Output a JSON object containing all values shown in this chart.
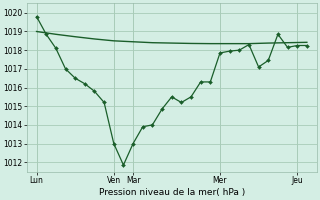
{
  "xlabel": "Pression niveau de la mer( hPa )",
  "bg_color": "#d4eee4",
  "grid_color": "#a8ccb8",
  "line_color": "#1a5e2a",
  "ylim": [
    1011.5,
    1020.5
  ],
  "yticks": [
    1012,
    1013,
    1014,
    1015,
    1016,
    1017,
    1018,
    1019,
    1020
  ],
  "xlim": [
    0,
    30
  ],
  "x_tick_positions": [
    1,
    9,
    11,
    20,
    28
  ],
  "x_tick_labels": [
    "Lun",
    "Ven",
    "Mar",
    "Mer",
    "Jeu"
  ],
  "vlines": [
    1,
    9,
    11,
    20,
    28
  ],
  "smooth_line_x": [
    1,
    3,
    5,
    7,
    9,
    11,
    13,
    15,
    17,
    19,
    21,
    23,
    25,
    27,
    29
  ],
  "smooth_line_y": [
    1019.0,
    1018.85,
    1018.72,
    1018.6,
    1018.5,
    1018.45,
    1018.4,
    1018.38,
    1018.36,
    1018.35,
    1018.35,
    1018.35,
    1018.38,
    1018.4,
    1018.42
  ],
  "jagged_x": [
    1,
    2,
    3,
    4,
    5,
    6,
    7,
    8,
    9,
    10,
    11,
    12,
    13,
    14,
    15,
    16,
    17,
    18,
    19,
    20,
    21,
    22,
    23,
    24,
    25,
    26,
    27,
    28,
    29
  ],
  "jagged_y": [
    1019.8,
    1018.85,
    1018.1,
    1017.0,
    1016.5,
    1016.2,
    1015.8,
    1015.2,
    1013.0,
    1011.85,
    1013.0,
    1013.9,
    1014.0,
    1014.85,
    1015.5,
    1015.2,
    1015.5,
    1016.3,
    1016.3,
    1017.85,
    1017.95,
    1018.0,
    1018.3,
    1017.1,
    1017.45,
    1018.85,
    1018.15,
    1018.25,
    1018.25
  ]
}
